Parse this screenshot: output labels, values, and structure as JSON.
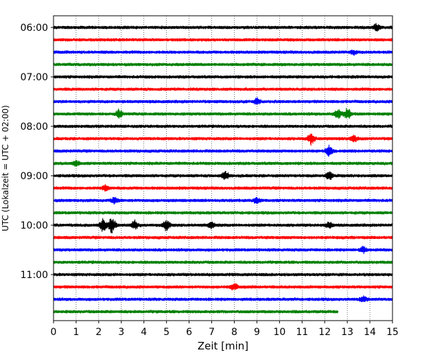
{
  "chart_data": {
    "type": "line",
    "title": "",
    "xlabel": "Zeit  [min]",
    "ylabel": "UTC (Lokalzeit = UTC + 02:00)",
    "xlim": [
      0,
      15
    ],
    "xticks": [
      0,
      1,
      2,
      3,
      4,
      5,
      6,
      7,
      8,
      9,
      10,
      11,
      12,
      13,
      14,
      15
    ],
    "grid": "vertical-dotted",
    "row_interval_minutes": 15,
    "y_ticks": [
      {
        "label": "06:00",
        "row": 0
      },
      {
        "label": "07:00",
        "row": 4
      },
      {
        "label": "08:00",
        "row": 8
      },
      {
        "label": "09:00",
        "row": 12
      },
      {
        "label": "10:00",
        "row": 16
      },
      {
        "label": "11:00",
        "row": 20
      }
    ],
    "colors": [
      "#000000",
      "#ff0000",
      "#0000ff",
      "#008000"
    ],
    "traces": [
      {
        "start": "06:00",
        "color": "#000000",
        "end_min": 15,
        "bursts": [
          {
            "t": 14.3,
            "amp": 4
          }
        ]
      },
      {
        "start": "06:15",
        "color": "#ff0000",
        "end_min": 15,
        "bursts": []
      },
      {
        "start": "06:30",
        "color": "#0000ff",
        "end_min": 15,
        "bursts": [
          {
            "t": 13.3,
            "amp": 3
          }
        ]
      },
      {
        "start": "06:45",
        "color": "#008000",
        "end_min": 15,
        "bursts": []
      },
      {
        "start": "07:00",
        "color": "#000000",
        "end_min": 15,
        "bursts": []
      },
      {
        "start": "07:15",
        "color": "#ff0000",
        "end_min": 15,
        "bursts": []
      },
      {
        "start": "07:30",
        "color": "#0000ff",
        "end_min": 15,
        "bursts": [
          {
            "t": 9.0,
            "amp": 4
          }
        ]
      },
      {
        "start": "07:45",
        "color": "#008000",
        "end_min": 15,
        "bursts": [
          {
            "t": 2.9,
            "amp": 6
          },
          {
            "t": 12.6,
            "amp": 6
          },
          {
            "t": 13.0,
            "amp": 8
          }
        ]
      },
      {
        "start": "08:00",
        "color": "#000000",
        "end_min": 15,
        "bursts": []
      },
      {
        "start": "08:15",
        "color": "#ff0000",
        "end_min": 15,
        "bursts": [
          {
            "t": 11.4,
            "amp": 9
          },
          {
            "t": 13.3,
            "amp": 4
          }
        ]
      },
      {
        "start": "08:30",
        "color": "#0000ff",
        "end_min": 15,
        "bursts": [
          {
            "t": 12.2,
            "amp": 7
          }
        ]
      },
      {
        "start": "08:45",
        "color": "#008000",
        "end_min": 15,
        "bursts": [
          {
            "t": 1.0,
            "amp": 4
          }
        ]
      },
      {
        "start": "09:00",
        "color": "#000000",
        "end_min": 15,
        "bursts": [
          {
            "t": 7.6,
            "amp": 6
          },
          {
            "t": 12.2,
            "amp": 6
          }
        ]
      },
      {
        "start": "09:15",
        "color": "#ff0000",
        "end_min": 15,
        "bursts": [
          {
            "t": 2.3,
            "amp": 5
          }
        ]
      },
      {
        "start": "09:30",
        "color": "#0000ff",
        "end_min": 15,
        "bursts": [
          {
            "t": 2.7,
            "amp": 4
          },
          {
            "t": 9.0,
            "amp": 4
          }
        ]
      },
      {
        "start": "09:45",
        "color": "#008000",
        "end_min": 15,
        "bursts": []
      },
      {
        "start": "10:00",
        "color": "#000000",
        "end_min": 15,
        "bursts": [
          {
            "t": 2.2,
            "amp": 9
          },
          {
            "t": 2.6,
            "amp": 12
          },
          {
            "t": 3.6,
            "amp": 6
          },
          {
            "t": 5.0,
            "amp": 8
          },
          {
            "t": 7.0,
            "amp": 5
          },
          {
            "t": 12.2,
            "amp": 4
          }
        ]
      },
      {
        "start": "10:15",
        "color": "#ff0000",
        "end_min": 15,
        "bursts": []
      },
      {
        "start": "10:30",
        "color": "#0000ff",
        "end_min": 15,
        "bursts": [
          {
            "t": 13.7,
            "amp": 4
          }
        ]
      },
      {
        "start": "10:45",
        "color": "#008000",
        "end_min": 15,
        "bursts": []
      },
      {
        "start": "11:00",
        "color": "#000000",
        "end_min": 15,
        "bursts": []
      },
      {
        "start": "11:15",
        "color": "#ff0000",
        "end_min": 15,
        "bursts": [
          {
            "t": 8.0,
            "amp": 4
          }
        ]
      },
      {
        "start": "11:30",
        "color": "#0000ff",
        "end_min": 15,
        "bursts": [
          {
            "t": 13.7,
            "amp": 5
          }
        ]
      },
      {
        "start": "11:45",
        "color": "#008000",
        "end_min": 12.6,
        "bursts": []
      }
    ]
  }
}
